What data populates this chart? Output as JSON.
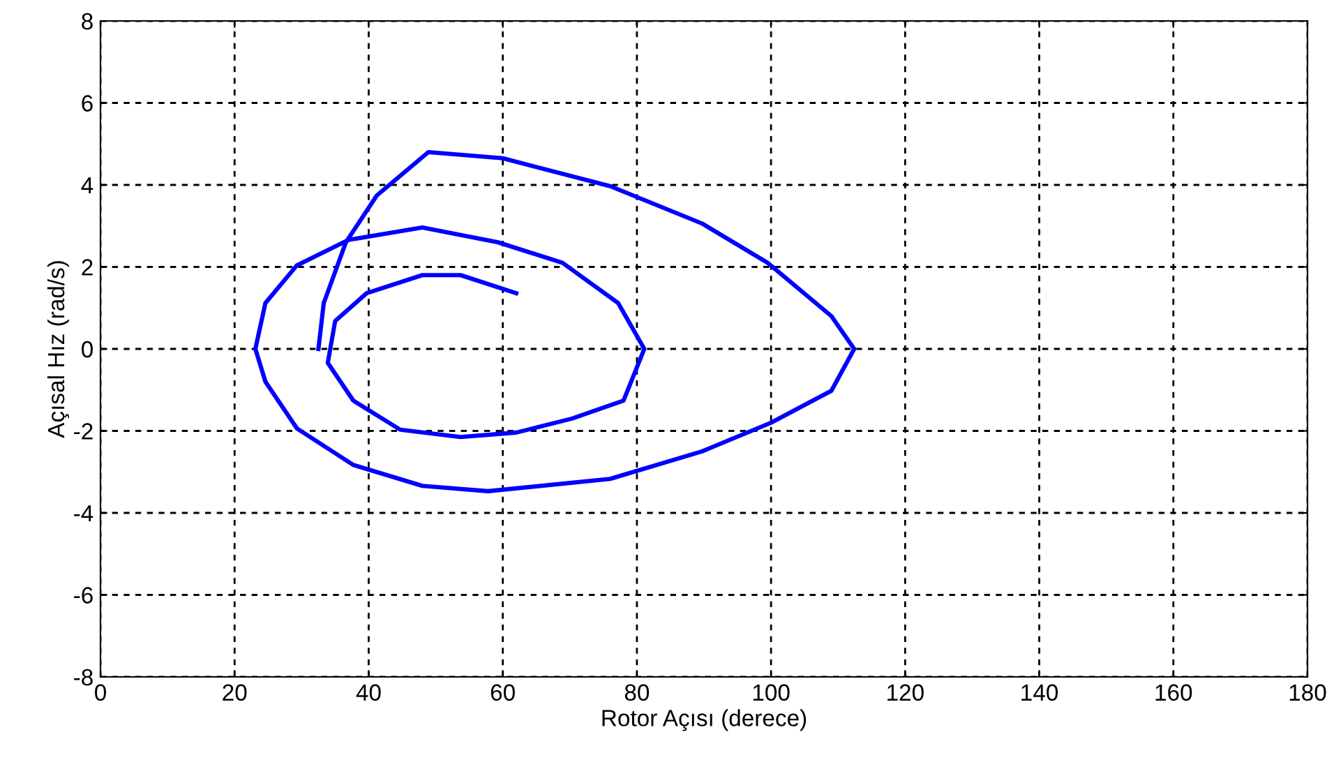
{
  "chart_data": {
    "type": "line",
    "xlabel": "Rotor Açısı (derece)",
    "ylabel": "Açısal Hız (rad/s)",
    "xlim": [
      0,
      180
    ],
    "ylim": [
      -8,
      8
    ],
    "xticks": [
      0,
      20,
      40,
      60,
      80,
      100,
      120,
      140,
      160,
      180
    ],
    "yticks": [
      -8,
      -6,
      -4,
      -2,
      0,
      2,
      4,
      6,
      8
    ],
    "grid": true,
    "line_style": "solid",
    "marker": "none",
    "series": [
      {
        "color": "#0000ff",
        "x": [
          32.5,
          33.3,
          36.6,
          41.2,
          48.9,
          60,
          76,
          89.7,
          99.5,
          109,
          112.4,
          109,
          100,
          89.7,
          76,
          57.8,
          48,
          37.7,
          29.3,
          24.6,
          23.1,
          24.6,
          29.3,
          37,
          48,
          59.3,
          68.9,
          77.2,
          81.1,
          78,
          70.3,
          62,
          53.7,
          44.7,
          37.7,
          33.9,
          35,
          39.7,
          48,
          53.7,
          62
        ],
        "values": [
          0,
          1.12,
          2.6,
          3.74,
          4.8,
          4.65,
          3.97,
          3.06,
          2.1,
          0.8,
          0,
          -1.02,
          -1.8,
          -2.5,
          -3.17,
          -3.47,
          -3.34,
          -2.83,
          -1.94,
          -0.8,
          0,
          1.12,
          2.04,
          2.66,
          2.96,
          2.6,
          2.1,
          1.12,
          0,
          -1.26,
          -1.7,
          -2.04,
          -2.15,
          -1.97,
          -1.26,
          -0.34,
          0.68,
          1.36,
          1.8,
          1.8,
          1.36
        ]
      }
    ]
  }
}
